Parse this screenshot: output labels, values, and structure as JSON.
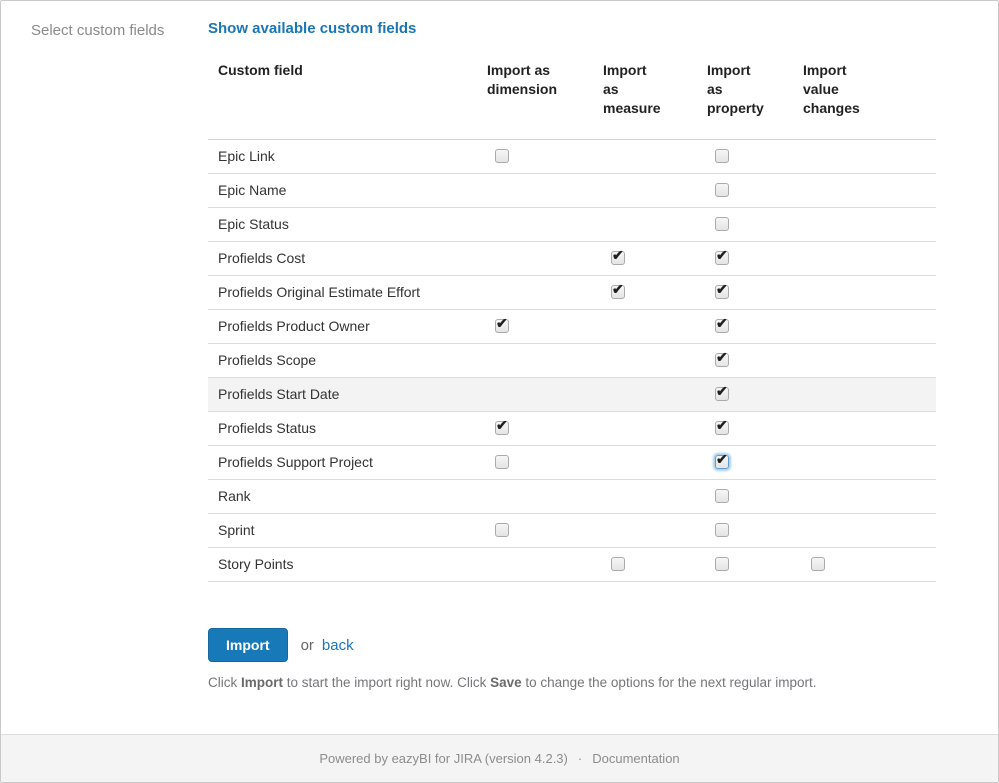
{
  "colors": {
    "accent_blue": "#1879b8",
    "link_blue": "#1a76b5",
    "highlight_row_bg": "#f3f3f3",
    "footer_bg": "#f4f4f4"
  },
  "section": {
    "label": "Select custom fields",
    "show_link": "Show available custom fields"
  },
  "table": {
    "headers": {
      "name": "Custom field",
      "dimension": "Import as\ndimension",
      "measure": "Import\nas\nmeasure",
      "property": "Import\nas\nproperty",
      "value_changes": "Import\nvalue\nchanges"
    },
    "rows": [
      {
        "label": "Epic Link",
        "highlighted": false,
        "checkboxes": {
          "dimension": "unchecked",
          "measure": null,
          "property": "unchecked",
          "value_changes": null
        }
      },
      {
        "label": "Epic Name",
        "highlighted": false,
        "checkboxes": {
          "dimension": null,
          "measure": null,
          "property": "unchecked",
          "value_changes": null
        }
      },
      {
        "label": "Epic Status",
        "highlighted": false,
        "checkboxes": {
          "dimension": null,
          "measure": null,
          "property": "unchecked",
          "value_changes": null
        }
      },
      {
        "label": "Profields Cost",
        "highlighted": false,
        "checkboxes": {
          "dimension": null,
          "measure": "checked",
          "property": "checked",
          "value_changes": null
        }
      },
      {
        "label": "Profields Original Estimate Effort",
        "highlighted": false,
        "checkboxes": {
          "dimension": null,
          "measure": "checked",
          "property": "checked",
          "value_changes": null
        }
      },
      {
        "label": "Profields Product Owner",
        "highlighted": false,
        "checkboxes": {
          "dimension": "checked",
          "measure": null,
          "property": "checked",
          "value_changes": null
        }
      },
      {
        "label": "Profields Scope",
        "highlighted": false,
        "checkboxes": {
          "dimension": null,
          "measure": null,
          "property": "checked",
          "value_changes": null
        }
      },
      {
        "label": "Profields Start Date",
        "highlighted": true,
        "checkboxes": {
          "dimension": null,
          "measure": null,
          "property": "checked",
          "value_changes": null
        }
      },
      {
        "label": "Profields Status",
        "highlighted": false,
        "checkboxes": {
          "dimension": "checked",
          "measure": null,
          "property": "checked",
          "value_changes": null
        }
      },
      {
        "label": "Profields Support Project",
        "highlighted": false,
        "checkboxes": {
          "dimension": "unchecked",
          "measure": null,
          "property": "checked-focused",
          "value_changes": null
        }
      },
      {
        "label": "Rank",
        "highlighted": false,
        "checkboxes": {
          "dimension": null,
          "measure": null,
          "property": "unchecked",
          "value_changes": null
        }
      },
      {
        "label": "Sprint",
        "highlighted": false,
        "checkboxes": {
          "dimension": "unchecked",
          "measure": null,
          "property": "unchecked",
          "value_changes": null
        }
      },
      {
        "label": "Story Points",
        "highlighted": false,
        "checkboxes": {
          "dimension": null,
          "measure": "unchecked",
          "property": "unchecked",
          "value_changes": "unchecked"
        }
      }
    ]
  },
  "actions": {
    "import_label": "Import",
    "or_text": "or",
    "back_label": "back"
  },
  "help": {
    "part1": "Click ",
    "bold1": "Import",
    "part2": " to start the import right now. Click ",
    "bold2": "Save",
    "part3": " to change the options for the next regular import."
  },
  "footer": {
    "powered_by": "Powered by eazyBI for JIRA (version 4.2.3)",
    "separator": "·",
    "documentation": "Documentation"
  }
}
